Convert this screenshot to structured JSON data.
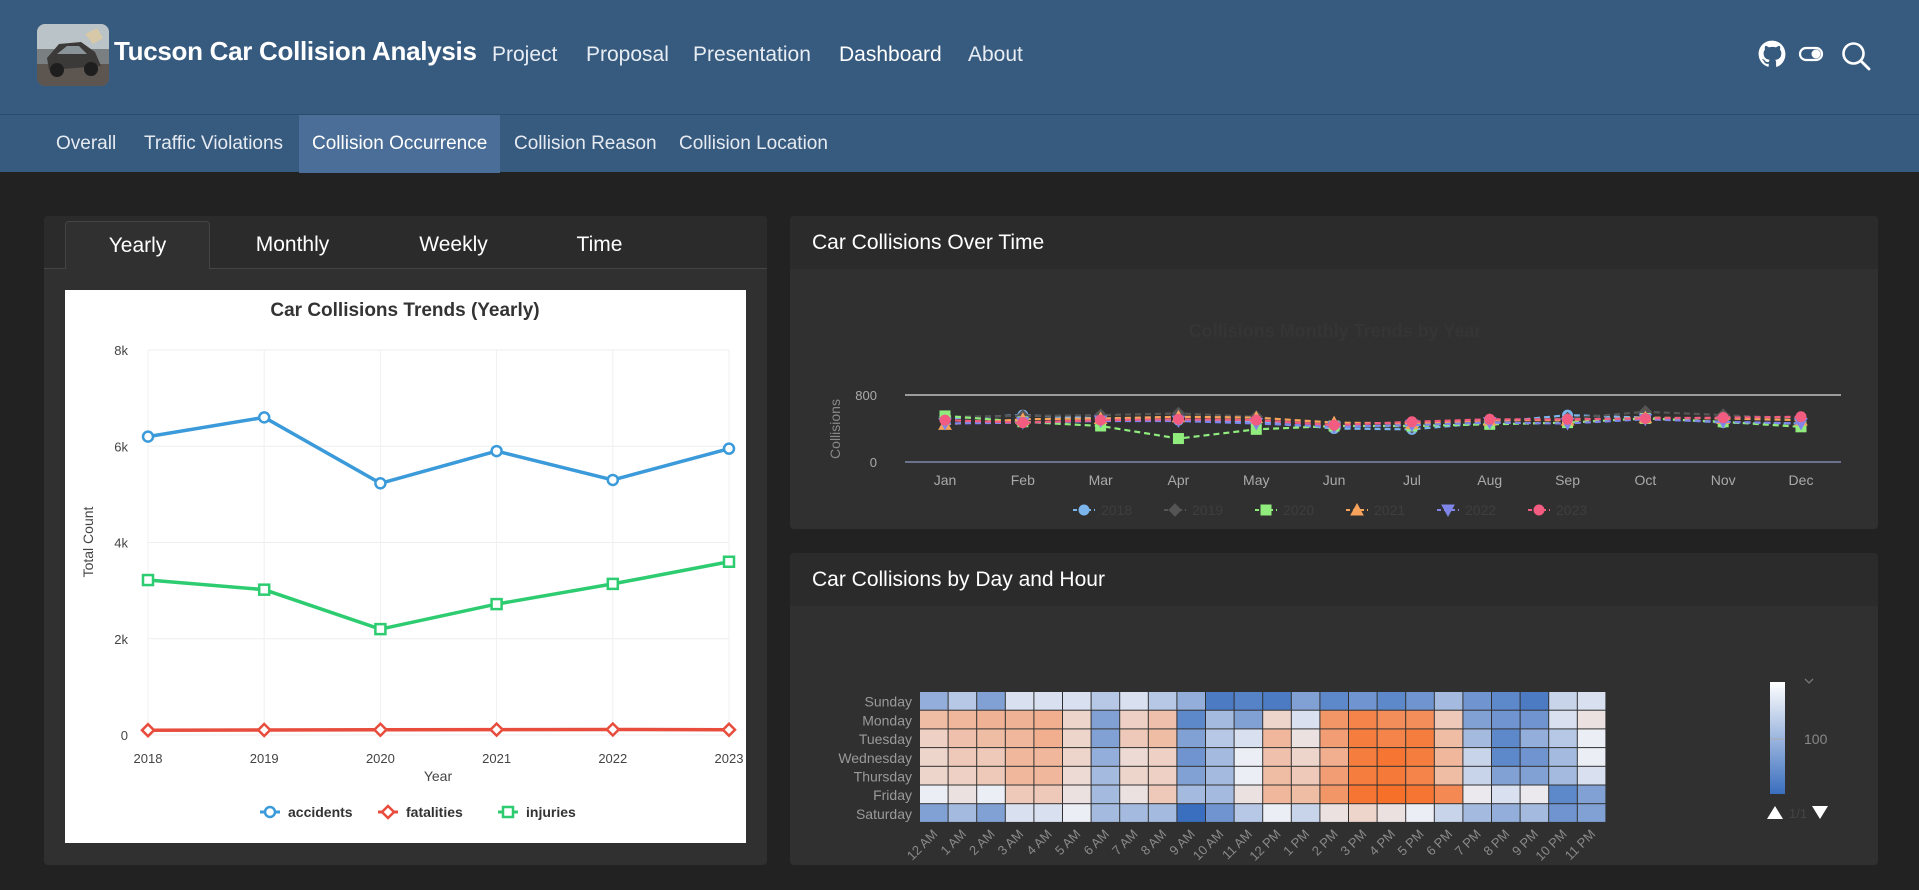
{
  "brand": {
    "title": "Tucson Car Collision Analysis"
  },
  "nav": {
    "items": [
      {
        "label": "Project"
      },
      {
        "label": "Proposal"
      },
      {
        "label": "Presentation"
      },
      {
        "label": "Dashboard"
      },
      {
        "label": "About"
      }
    ]
  },
  "subnav": {
    "items": [
      {
        "label": "Overall"
      },
      {
        "label": "Traffic Violations"
      },
      {
        "label": "Collision Occurrence"
      },
      {
        "label": "Collision Reason"
      },
      {
        "label": "Collision Location"
      }
    ]
  },
  "left_card": {
    "tabs": [
      {
        "label": "Yearly"
      },
      {
        "label": "Monthly"
      },
      {
        "label": "Weekly"
      },
      {
        "label": "Time"
      }
    ]
  },
  "right_top": {
    "title": "Car Collisions Over Time"
  },
  "right_bottom": {
    "title": "Car Collisions by Day and Hour"
  },
  "colors": {
    "navbar": "#375a7f",
    "accidents": "#3b9ad9",
    "fatalities": "#e74c3c",
    "injuries": "#2ecc71",
    "heat_low": "#4a7fc0",
    "heat_high": "#f4783a"
  },
  "chart_data": [
    {
      "type": "line",
      "title": "Car Collisions Trends (Yearly)",
      "xlabel": "Year",
      "ylabel": "Total Count",
      "ylim": [
        0,
        8000
      ],
      "yticks": [
        {
          "v": 0,
          "label": "0"
        },
        {
          "v": 2000,
          "label": "2k"
        },
        {
          "v": 4000,
          "label": "4k"
        },
        {
          "v": 6000,
          "label": "6k"
        },
        {
          "v": 8000,
          "label": "8k"
        }
      ],
      "categories": [
        "2018",
        "2019",
        "2020",
        "2021",
        "2022",
        "2023"
      ],
      "legend_position": "bottom",
      "series": [
        {
          "name": "accidents",
          "marker": "circle",
          "color": "#3b9ad9",
          "values": [
            6200,
            6600,
            5230,
            5900,
            5300,
            5950
          ]
        },
        {
          "name": "fatalities",
          "marker": "diamond",
          "color": "#e74c3c",
          "values": [
            100,
            105,
            110,
            112,
            115,
            110
          ]
        },
        {
          "name": "injuries",
          "marker": "square",
          "color": "#2ecc71",
          "values": [
            3220,
            3020,
            2200,
            2720,
            3140,
            3600
          ]
        }
      ]
    },
    {
      "type": "line",
      "title": "Collisions Monthly Trends by Year",
      "ylabel": "Collisions",
      "ylim": [
        0,
        800
      ],
      "yticks": [
        {
          "v": 0,
          "label": "0"
        },
        {
          "v": 800,
          "label": "800"
        }
      ],
      "categories": [
        "Jan",
        "Feb",
        "Mar",
        "Apr",
        "May",
        "Jun",
        "Jul",
        "Aug",
        "Sep",
        "Oct",
        "Nov",
        "Dec"
      ],
      "legend_position": "bottom",
      "series": [
        {
          "name": "2018",
          "marker": "circle",
          "color": "#7cb5ec",
          "values": [
            520,
            560,
            520,
            500,
            480,
            400,
            390,
            470,
            560,
            530,
            470,
            460
          ]
        },
        {
          "name": "2019",
          "marker": "diamond",
          "color": "#555",
          "values": [
            540,
            550,
            560,
            580,
            540,
            440,
            420,
            490,
            520,
            600,
            560,
            520
          ]
        },
        {
          "name": "2020",
          "marker": "square",
          "color": "#90ed7d",
          "values": [
            550,
            480,
            430,
            280,
            390,
            430,
            430,
            450,
            470,
            520,
            480,
            420
          ]
        },
        {
          "name": "2021",
          "marker": "triangle",
          "color": "#f7a35c",
          "values": [
            450,
            510,
            520,
            540,
            530,
            470,
            460,
            500,
            500,
            530,
            520,
            500
          ]
        },
        {
          "name": "2022",
          "marker": "triangle-down",
          "color": "#8085e9",
          "values": [
            460,
            470,
            490,
            490,
            460,
            420,
            440,
            470,
            460,
            510,
            480,
            460
          ]
        },
        {
          "name": "2023",
          "marker": "circle",
          "color": "#f15c80",
          "values": [
            500,
            470,
            500,
            510,
            500,
            440,
            480,
            510,
            510,
            520,
            530,
            540
          ]
        }
      ]
    },
    {
      "type": "heatmap",
      "rows": [
        "Sunday",
        "Monday",
        "Tuesday",
        "Wednesday",
        "Thursday",
        "Friday",
        "Saturday"
      ],
      "columns": [
        "12 AM",
        "1 AM",
        "2 AM",
        "3 AM",
        "4 AM",
        "5 AM",
        "6 AM",
        "7 AM",
        "8 AM",
        "9 AM",
        "10 AM",
        "11 AM",
        "12 PM",
        "1 PM",
        "2 PM",
        "3 PM",
        "4 PM",
        "5 PM",
        "6 PM",
        "7 PM",
        "8 PM",
        "9 PM",
        "10 PM",
        "11 PM"
      ],
      "values": [
        [
          0.25,
          0.35,
          0.2,
          0.45,
          0.45,
          0.45,
          0.35,
          0.45,
          0.35,
          0.25,
          0.05,
          0.08,
          0.05,
          0.2,
          0.1,
          0.15,
          0.1,
          0.15,
          0.3,
          0.15,
          0.1,
          0.05,
          0.4,
          0.45
        ],
        [
          0.7,
          0.72,
          0.74,
          0.74,
          0.75,
          0.6,
          0.2,
          0.62,
          0.68,
          0.1,
          0.3,
          0.2,
          0.6,
          0.45,
          0.85,
          0.92,
          0.88,
          0.88,
          0.65,
          0.2,
          0.15,
          0.15,
          0.45,
          0.55
        ],
        [
          0.62,
          0.68,
          0.7,
          0.72,
          0.75,
          0.6,
          0.2,
          0.65,
          0.7,
          0.2,
          0.35,
          0.45,
          0.72,
          0.55,
          0.82,
          0.95,
          0.92,
          0.95,
          0.7,
          0.3,
          0.1,
          0.25,
          0.35,
          0.5
        ],
        [
          0.6,
          0.65,
          0.65,
          0.72,
          0.72,
          0.6,
          0.25,
          0.58,
          0.62,
          0.15,
          0.3,
          0.5,
          0.68,
          0.6,
          0.75,
          0.95,
          0.98,
          0.95,
          0.72,
          0.4,
          0.1,
          0.15,
          0.3,
          0.5
        ],
        [
          0.6,
          0.62,
          0.65,
          0.72,
          0.72,
          0.58,
          0.3,
          0.6,
          0.62,
          0.2,
          0.3,
          0.5,
          0.7,
          0.65,
          0.82,
          0.95,
          0.96,
          0.92,
          0.7,
          0.4,
          0.2,
          0.2,
          0.3,
          0.45
        ],
        [
          0.5,
          0.55,
          0.5,
          0.65,
          0.65,
          0.55,
          0.3,
          0.55,
          0.65,
          0.3,
          0.3,
          0.55,
          0.72,
          0.7,
          0.85,
          0.98,
          1.0,
          0.98,
          0.9,
          0.52,
          0.45,
          0.52,
          0.1,
          0.2
        ],
        [
          0.2,
          0.3,
          0.2,
          0.45,
          0.45,
          0.5,
          0.3,
          0.3,
          0.3,
          0.0,
          0.15,
          0.35,
          0.5,
          0.4,
          0.55,
          0.6,
          0.55,
          0.5,
          0.4,
          0.3,
          0.25,
          0.3,
          0.15,
          0.2
        ]
      ],
      "colorbar": {
        "tick_label": "100",
        "page": "1/1"
      }
    }
  ]
}
